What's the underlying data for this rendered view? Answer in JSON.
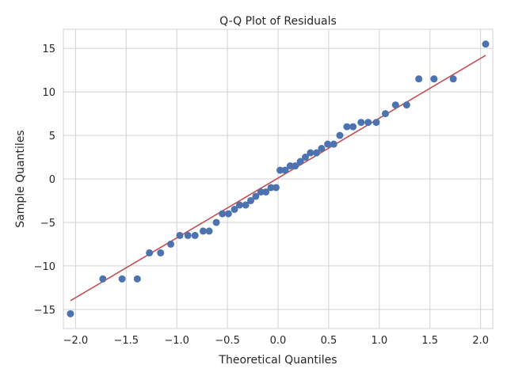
{
  "chart_data": {
    "type": "scatter",
    "title": "Q-Q Plot of Residuals",
    "xlabel": "Theoretical Quantiles",
    "ylabel": "Sample Quantiles",
    "xlim": [
      -2.12,
      2.12
    ],
    "ylim": [
      -17.2,
      17.2
    ],
    "xticks": [
      -2.0,
      -1.5,
      -1.0,
      -0.5,
      0.0,
      0.5,
      1.0,
      1.5,
      2.0
    ],
    "xtick_labels": [
      "−2.0",
      "−1.5",
      "−1.0",
      "−0.5",
      "0.0",
      "0.5",
      "1.0",
      "1.5",
      "2.0"
    ],
    "yticks": [
      15,
      10,
      5,
      0,
      -5,
      -10,
      -15
    ],
    "ytick_labels": [
      "15",
      "10",
      "5",
      "0",
      "−5",
      "−10",
      "−15"
    ],
    "grid": true,
    "points_color": "#4c72b0",
    "line_color": "#c44e52",
    "reference_line": {
      "x": [
        -2.05,
        2.05
      ],
      "y": [
        -14.0,
        14.2
      ]
    },
    "points": [
      [
        -2.05,
        -15.5
      ],
      [
        -1.73,
        -11.5
      ],
      [
        -1.54,
        -11.5
      ],
      [
        -1.39,
        -11.5
      ],
      [
        -1.27,
        -8.5
      ],
      [
        -1.16,
        -8.5
      ],
      [
        -1.06,
        -7.5
      ],
      [
        -0.97,
        -6.5
      ],
      [
        -0.89,
        -6.5
      ],
      [
        -0.82,
        -6.5
      ],
      [
        -0.74,
        -6.0
      ],
      [
        -0.68,
        -6.0
      ],
      [
        -0.61,
        -5.0
      ],
      [
        -0.55,
        -4.0
      ],
      [
        -0.49,
        -4.0
      ],
      [
        -0.43,
        -3.5
      ],
      [
        -0.38,
        -3.0
      ],
      [
        -0.32,
        -3.0
      ],
      [
        -0.27,
        -2.5
      ],
      [
        -0.22,
        -2.0
      ],
      [
        -0.17,
        -1.5
      ],
      [
        -0.12,
        -1.5
      ],
      [
        -0.07,
        -1.0
      ],
      [
        -0.02,
        -1.0
      ],
      [
        0.02,
        1.0
      ],
      [
        0.07,
        1.0
      ],
      [
        0.12,
        1.5
      ],
      [
        0.17,
        1.5
      ],
      [
        0.22,
        2.0
      ],
      [
        0.27,
        2.5
      ],
      [
        0.32,
        3.0
      ],
      [
        0.38,
        3.0
      ],
      [
        0.43,
        3.5
      ],
      [
        0.49,
        4.0
      ],
      [
        0.55,
        4.0
      ],
      [
        0.61,
        5.0
      ],
      [
        0.68,
        6.0
      ],
      [
        0.74,
        6.0
      ],
      [
        0.82,
        6.5
      ],
      [
        0.89,
        6.5
      ],
      [
        0.97,
        6.5
      ],
      [
        1.06,
        7.5
      ],
      [
        1.16,
        8.5
      ],
      [
        1.27,
        8.5
      ],
      [
        1.39,
        11.5
      ],
      [
        1.54,
        11.5
      ],
      [
        1.73,
        11.5
      ],
      [
        2.05,
        15.5
      ]
    ]
  }
}
